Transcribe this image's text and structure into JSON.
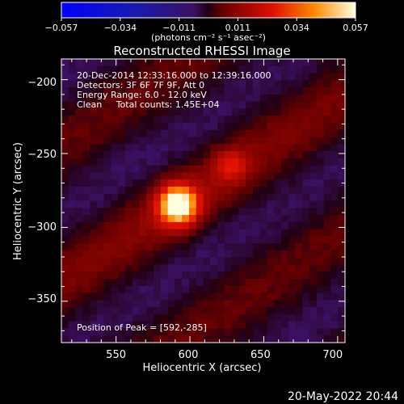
{
  "chart_data": {
    "type": "heatmap",
    "title": "Reconstructed RHESSI Image",
    "xlabel": "Heliocentric X (arcsec)",
    "ylabel": "Heliocentric Y (arcsec)",
    "xlim": [
      513,
      705
    ],
    "ylim": [
      -378,
      -186
    ],
    "x_ticks": [
      550,
      600,
      650,
      700
    ],
    "x_tick_labels": [
      "550",
      "600",
      "650",
      "700"
    ],
    "y_ticks": [
      -200,
      -250,
      -300,
      -350
    ],
    "y_tick_labels": [
      "−200",
      "−250",
      "−300",
      "−350"
    ],
    "colorbar": {
      "ticks": [
        "−0.057",
        "−0.034",
        "−0.011",
        "0.011",
        "0.034",
        "0.057"
      ],
      "vmin": -0.057,
      "vmax": 0.057,
      "units_label": "(photons cm⁻² s⁻¹ asec⁻²)"
    },
    "annotations": [
      "20-Dec-2014 12:33:16.000 to 12:39:16.000",
      "Detectors: 3F 6F 7F 9F, Att 0",
      "Energy Range: 6.0 - 12.0 keV",
      "Clean     Total counts: 1.45E+04"
    ],
    "peak_label": "Position of Peak = [592,-285]",
    "peak": [
      592,
      -285
    ],
    "secondary_source": [
      628,
      -258
    ],
    "fringe_direction_deg": 33,
    "grid": false
  },
  "footer": {
    "timestamp": "20-May-2022 20:44"
  }
}
